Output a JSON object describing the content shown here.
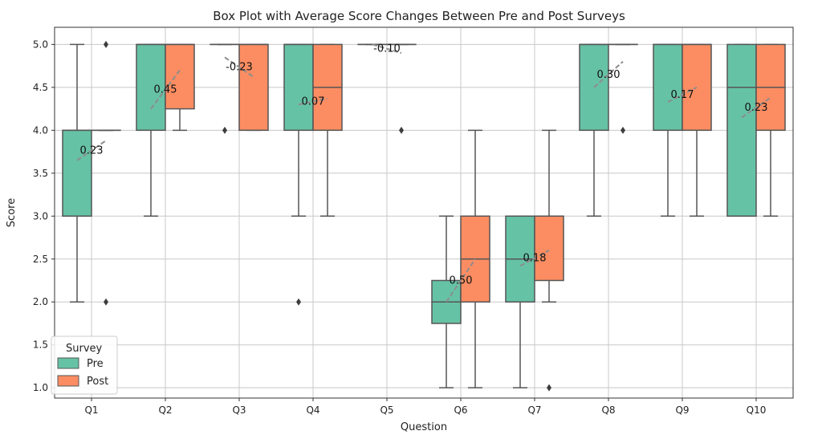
{
  "chart_data": {
    "type": "boxplot",
    "title": "Box Plot with Average Score Changes Between Pre and Post Surveys",
    "xlabel": "Question",
    "ylabel": "Score",
    "ylim": [
      0.88,
      5.2
    ],
    "yticks": [
      "1.0",
      "1.5",
      "2.0",
      "2.5",
      "3.0",
      "3.5",
      "4.0",
      "4.5",
      "5.0"
    ],
    "grid": true,
    "legend": {
      "title": "Survey",
      "placement": "lower-left"
    },
    "categories": [
      "Q1",
      "Q2",
      "Q3",
      "Q4",
      "Q5",
      "Q6",
      "Q7",
      "Q8",
      "Q9",
      "Q10"
    ],
    "series": [
      {
        "name": "Pre",
        "color": "#66c2a5",
        "boxes": [
          {
            "min": 2.0,
            "q1": 3.0,
            "median": 4.0,
            "q3": 4.0,
            "max": 5.0,
            "outliers": []
          },
          {
            "min": 3.0,
            "q1": 4.0,
            "median": 5.0,
            "q3": 5.0,
            "max": 5.0,
            "outliers": []
          },
          {
            "min": 5.0,
            "q1": 5.0,
            "median": 5.0,
            "q3": 5.0,
            "max": 5.0,
            "outliers": [
              4.0
            ]
          },
          {
            "min": 3.0,
            "q1": 4.0,
            "median": 5.0,
            "q3": 5.0,
            "max": 5.0,
            "outliers": [
              2.0
            ]
          },
          {
            "min": 5.0,
            "q1": 5.0,
            "median": 5.0,
            "q3": 5.0,
            "max": 5.0,
            "outliers": []
          },
          {
            "min": 1.0,
            "q1": 1.75,
            "median": 2.0,
            "q3": 2.25,
            "max": 3.0,
            "outliers": []
          },
          {
            "min": 1.0,
            "q1": 2.0,
            "median": 2.5,
            "q3": 3.0,
            "max": 3.0,
            "outliers": []
          },
          {
            "min": 3.0,
            "q1": 4.0,
            "median": 5.0,
            "q3": 5.0,
            "max": 5.0,
            "outliers": []
          },
          {
            "min": 3.0,
            "q1": 4.0,
            "median": 5.0,
            "q3": 5.0,
            "max": 5.0,
            "outliers": []
          },
          {
            "min": 3.0,
            "q1": 3.0,
            "median": 4.5,
            "q3": 5.0,
            "max": 5.0,
            "outliers": []
          }
        ]
      },
      {
        "name": "Post",
        "color": "#fc8d62",
        "boxes": [
          {
            "min": 4.0,
            "q1": 4.0,
            "median": 4.0,
            "q3": 4.0,
            "max": 4.0,
            "outliers": [
              5.0,
              2.0
            ]
          },
          {
            "min": 4.0,
            "q1": 4.25,
            "median": 5.0,
            "q3": 5.0,
            "max": 5.0,
            "outliers": []
          },
          {
            "min": 4.0,
            "q1": 4.0,
            "median": 5.0,
            "q3": 5.0,
            "max": 5.0,
            "outliers": []
          },
          {
            "min": 3.0,
            "q1": 4.0,
            "median": 4.5,
            "q3": 5.0,
            "max": 5.0,
            "outliers": []
          },
          {
            "min": 5.0,
            "q1": 5.0,
            "median": 5.0,
            "q3": 5.0,
            "max": 5.0,
            "outliers": [
              4.0
            ]
          },
          {
            "min": 1.0,
            "q1": 2.0,
            "median": 2.5,
            "q3": 3.0,
            "max": 4.0,
            "outliers": []
          },
          {
            "min": 2.0,
            "q1": 2.25,
            "median": 3.0,
            "q3": 3.0,
            "max": 4.0,
            "outliers": [
              1.0
            ]
          },
          {
            "min": 5.0,
            "q1": 5.0,
            "median": 5.0,
            "q3": 5.0,
            "max": 5.0,
            "outliers": [
              4.0
            ]
          },
          {
            "min": 3.0,
            "q1": 4.0,
            "median": 5.0,
            "q3": 5.0,
            "max": 5.0,
            "outliers": []
          },
          {
            "min": 3.0,
            "q1": 4.0,
            "median": 4.5,
            "q3": 5.0,
            "max": 5.0,
            "outliers": []
          }
        ]
      }
    ],
    "mean_changes": [
      {
        "pre_mean": 3.65,
        "post_mean": 3.88,
        "label": "0.23"
      },
      {
        "pre_mean": 4.25,
        "post_mean": 4.7,
        "label": "0.45"
      },
      {
        "pre_mean": 4.85,
        "post_mean": 4.62,
        "label": "-0.23"
      },
      {
        "pre_mean": 4.3,
        "post_mean": 4.37,
        "label": "0.07"
      },
      {
        "pre_mean": 5.0,
        "post_mean": 4.9,
        "label": "-0.10"
      },
      {
        "pre_mean": 2.0,
        "post_mean": 2.5,
        "label": "0.50"
      },
      {
        "pre_mean": 2.42,
        "post_mean": 2.6,
        "label": "0.18"
      },
      {
        "pre_mean": 4.5,
        "post_mean": 4.8,
        "label": "0.30"
      },
      {
        "pre_mean": 4.33,
        "post_mean": 4.5,
        "label": "0.17"
      },
      {
        "pre_mean": 4.15,
        "post_mean": 4.38,
        "label": "0.23"
      }
    ]
  }
}
